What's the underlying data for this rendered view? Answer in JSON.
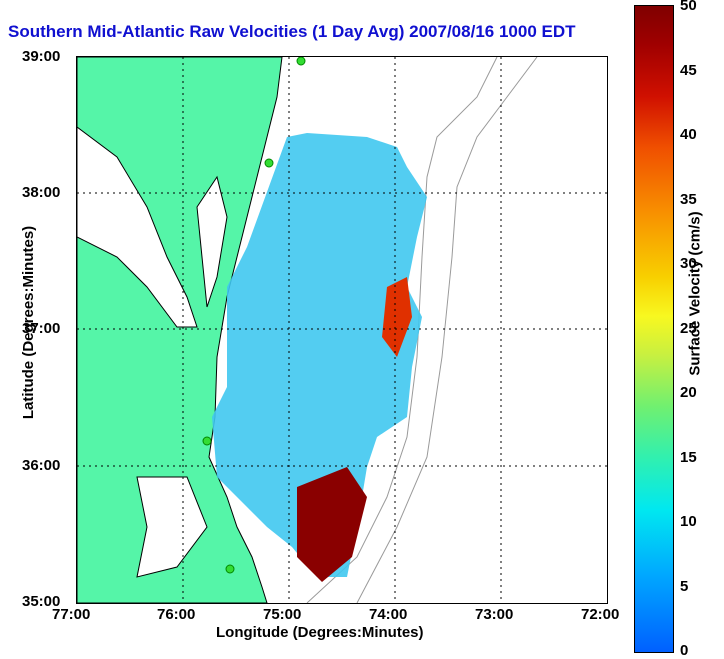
{
  "title": "Southern Mid-Atlantic Raw Velocities (1 Day Avg) 2007/08/16 1000 EDT",
  "xlabel": "Longitude (Degrees:Minutes)",
  "ylabel": "Latitude (Degrees:Minutes)",
  "colorbar_label": "Surface Velocity (cm/s)",
  "x_ticks": [
    "77:00",
    "76:00",
    "75:00",
    "74:00",
    "73:00",
    "72:00"
  ],
  "y_ticks": [
    "39:00",
    "38:00",
    "37:00",
    "36:00",
    "35:00"
  ],
  "colorbar_ticks": [
    "50",
    "45",
    "40",
    "35",
    "30",
    "25",
    "20",
    "15",
    "10",
    "5",
    "0"
  ],
  "colors": {
    "land": "#55f5a8",
    "title": "#1010d0",
    "coast": "#000000",
    "bathymetry": "#9a9a9a"
  },
  "markers": {
    "color": "#33dd33",
    "count": 4
  }
}
